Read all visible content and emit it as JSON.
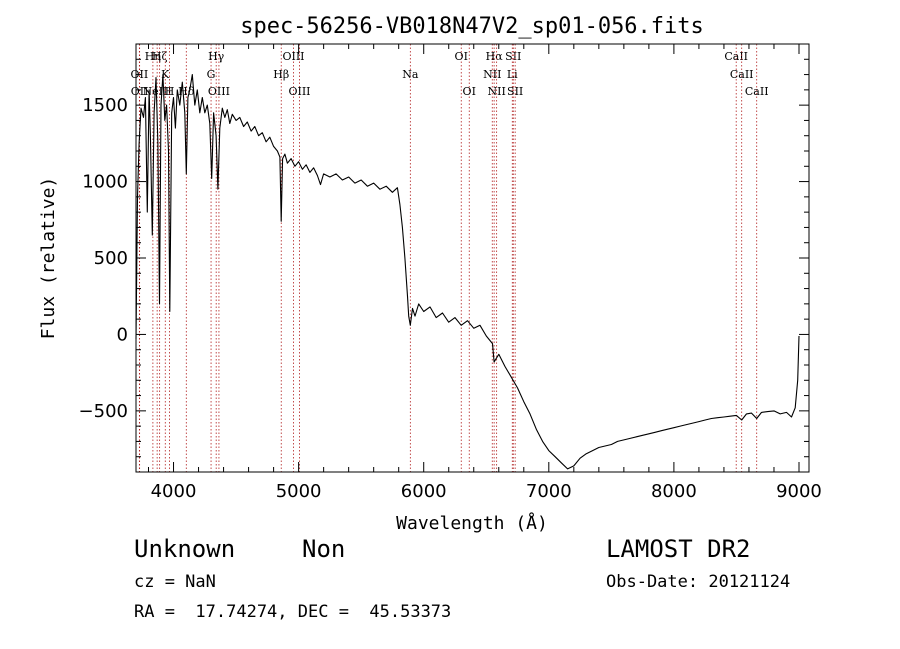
{
  "chart_data": {
    "type": "line",
    "title": "spec-56256-VB018N47V2_sp01-056.fits",
    "xlabel": "Wavelength (Å)",
    "ylabel": "Flux (relative)",
    "xlim": [
      3700,
      9080
    ],
    "ylim": [
      -900,
      1900
    ],
    "x_ticks": [
      4000,
      5000,
      6000,
      7000,
      8000,
      9000
    ],
    "y_ticks": [
      -500,
      0,
      500,
      1000,
      1500
    ],
    "grid": false,
    "series": [
      {
        "points": [
          [
            3700,
            -30
          ],
          [
            3712,
            900
          ],
          [
            3725,
            1250
          ],
          [
            3740,
            1480
          ],
          [
            3760,
            1420
          ],
          [
            3775,
            1550
          ],
          [
            3790,
            800
          ],
          [
            3805,
            1600
          ],
          [
            3815,
            1300
          ],
          [
            3830,
            650
          ],
          [
            3845,
            1450
          ],
          [
            3860,
            1680
          ],
          [
            3875,
            1250
          ],
          [
            3888,
            200
          ],
          [
            3900,
            1500
          ],
          [
            3915,
            1700
          ],
          [
            3930,
            1400
          ],
          [
            3945,
            1500
          ],
          [
            3960,
            1200
          ],
          [
            3970,
            150
          ],
          [
            3985,
            1450
          ],
          [
            4000,
            1550
          ],
          [
            4015,
            1350
          ],
          [
            4030,
            1600
          ],
          [
            4050,
            1500
          ],
          [
            4070,
            1650
          ],
          [
            4090,
            1450
          ],
          [
            4102,
            1050
          ],
          [
            4115,
            1550
          ],
          [
            4130,
            1600
          ],
          [
            4150,
            1700
          ],
          [
            4170,
            1500
          ],
          [
            4190,
            1600
          ],
          [
            4210,
            1450
          ],
          [
            4230,
            1550
          ],
          [
            4250,
            1450
          ],
          [
            4270,
            1500
          ],
          [
            4290,
            1380
          ],
          [
            4305,
            1020
          ],
          [
            4320,
            1450
          ],
          [
            4340,
            1300
          ],
          [
            4355,
            950
          ],
          [
            4370,
            1350
          ],
          [
            4390,
            1480
          ],
          [
            4410,
            1420
          ],
          [
            4430,
            1470
          ],
          [
            4450,
            1380
          ],
          [
            4470,
            1440
          ],
          [
            4500,
            1400
          ],
          [
            4530,
            1420
          ],
          [
            4560,
            1360
          ],
          [
            4590,
            1390
          ],
          [
            4620,
            1330
          ],
          [
            4650,
            1360
          ],
          [
            4680,
            1300
          ],
          [
            4710,
            1320
          ],
          [
            4740,
            1260
          ],
          [
            4770,
            1290
          ],
          [
            4800,
            1230
          ],
          [
            4830,
            1200
          ],
          [
            4850,
            1160
          ],
          [
            4861,
            740
          ],
          [
            4872,
            1150
          ],
          [
            4890,
            1180
          ],
          [
            4910,
            1120
          ],
          [
            4940,
            1150
          ],
          [
            4970,
            1100
          ],
          [
            5000,
            1130
          ],
          [
            5030,
            1080
          ],
          [
            5060,
            1110
          ],
          [
            5090,
            1060
          ],
          [
            5120,
            1090
          ],
          [
            5150,
            1040
          ],
          [
            5175,
            980
          ],
          [
            5200,
            1050
          ],
          [
            5250,
            1030
          ],
          [
            5300,
            1050
          ],
          [
            5350,
            1010
          ],
          [
            5400,
            1030
          ],
          [
            5450,
            990
          ],
          [
            5500,
            1010
          ],
          [
            5550,
            970
          ],
          [
            5600,
            990
          ],
          [
            5650,
            950
          ],
          [
            5700,
            970
          ],
          [
            5750,
            930
          ],
          [
            5790,
            960
          ],
          [
            5810,
            850
          ],
          [
            5830,
            700
          ],
          [
            5850,
            500
          ],
          [
            5870,
            250
          ],
          [
            5880,
            120
          ],
          [
            5893,
            60
          ],
          [
            5910,
            170
          ],
          [
            5930,
            120
          ],
          [
            5960,
            200
          ],
          [
            6000,
            150
          ],
          [
            6050,
            180
          ],
          [
            6100,
            110
          ],
          [
            6150,
            140
          ],
          [
            6200,
            80
          ],
          [
            6250,
            110
          ],
          [
            6300,
            60
          ],
          [
            6350,
            90
          ],
          [
            6400,
            40
          ],
          [
            6450,
            60
          ],
          [
            6500,
            -10
          ],
          [
            6550,
            -60
          ],
          [
            6563,
            -180
          ],
          [
            6600,
            -130
          ],
          [
            6650,
            -210
          ],
          [
            6700,
            -280
          ],
          [
            6750,
            -350
          ],
          [
            6800,
            -440
          ],
          [
            6850,
            -520
          ],
          [
            6900,
            -620
          ],
          [
            6950,
            -700
          ],
          [
            7000,
            -760
          ],
          [
            7050,
            -800
          ],
          [
            7100,
            -840
          ],
          [
            7150,
            -880
          ],
          [
            7200,
            -860
          ],
          [
            7250,
            -810
          ],
          [
            7300,
            -780
          ],
          [
            7350,
            -760
          ],
          [
            7400,
            -740
          ],
          [
            7450,
            -730
          ],
          [
            7500,
            -720
          ],
          [
            7550,
            -700
          ],
          [
            7600,
            -690
          ],
          [
            7650,
            -680
          ],
          [
            7700,
            -670
          ],
          [
            7750,
            -660
          ],
          [
            7800,
            -650
          ],
          [
            7850,
            -640
          ],
          [
            7900,
            -630
          ],
          [
            7950,
            -620
          ],
          [
            8000,
            -610
          ],
          [
            8050,
            -600
          ],
          [
            8100,
            -590
          ],
          [
            8150,
            -580
          ],
          [
            8200,
            -570
          ],
          [
            8250,
            -560
          ],
          [
            8300,
            -550
          ],
          [
            8350,
            -545
          ],
          [
            8400,
            -540
          ],
          [
            8450,
            -535
          ],
          [
            8500,
            -530
          ],
          [
            8542,
            -560
          ],
          [
            8580,
            -520
          ],
          [
            8620,
            -515
          ],
          [
            8662,
            -550
          ],
          [
            8700,
            -510
          ],
          [
            8750,
            -505
          ],
          [
            8800,
            -500
          ],
          [
            8850,
            -520
          ],
          [
            8900,
            -510
          ],
          [
            8940,
            -540
          ],
          [
            8970,
            -480
          ],
          [
            8990,
            -300
          ],
          [
            9000,
            -10
          ]
        ]
      }
    ],
    "lines": [
      {
        "x": 3727,
        "label": "OII",
        "row": 1
      },
      {
        "x": 3729,
        "label": "OII",
        "row": 2
      },
      {
        "x": 3835,
        "label": "Hη",
        "row": 0
      },
      {
        "x": 3869,
        "label": "NeIII",
        "row": 2
      },
      {
        "x": 3889,
        "label": "Hζ",
        "row": 0
      },
      {
        "x": 3934,
        "label": "K",
        "row": 1
      },
      {
        "x": 3968,
        "label": "H",
        "row": 2
      },
      {
        "x": 4102,
        "label": "Hδ",
        "row": 2
      },
      {
        "x": 4300,
        "label": "G",
        "row": 1
      },
      {
        "x": 4341,
        "label": "Hγ",
        "row": 0
      },
      {
        "x": 4363,
        "label": "OIII",
        "row": 2
      },
      {
        "x": 4861,
        "label": "Hβ",
        "row": 1
      },
      {
        "x": 4959,
        "label": "OIII",
        "row": 0
      },
      {
        "x": 5007,
        "label": "OIII",
        "row": 2
      },
      {
        "x": 5893,
        "label": "Na",
        "row": 1
      },
      {
        "x": 6300,
        "label": "OI",
        "row": 0
      },
      {
        "x": 6364,
        "label": "OI",
        "row": 2
      },
      {
        "x": 6548,
        "label": "NII",
        "row": 1
      },
      {
        "x": 6563,
        "label": "Hα",
        "row": 0
      },
      {
        "x": 6583,
        "label": "NII",
        "row": 2
      },
      {
        "x": 6708,
        "label": "Li",
        "row": 1
      },
      {
        "x": 6716,
        "label": "SII",
        "row": 0
      },
      {
        "x": 6731,
        "label": "SII",
        "row": 2
      },
      {
        "x": 8498,
        "label": "CaII",
        "row": 0
      },
      {
        "x": 8542,
        "label": "CaII",
        "row": 1
      },
      {
        "x": 8662,
        "label": "CaII",
        "row": 2
      }
    ]
  },
  "info": {
    "class": "Unknown",
    "subclass": "Non",
    "survey": "LAMOST DR2",
    "cz": "cz = NaN",
    "obs_date": "Obs-Date: 20121124",
    "coords": "RA =  17.74274, DEC =  45.53373"
  },
  "colors": {
    "line_marker": "#b22222",
    "spectrum": "#000000"
  }
}
